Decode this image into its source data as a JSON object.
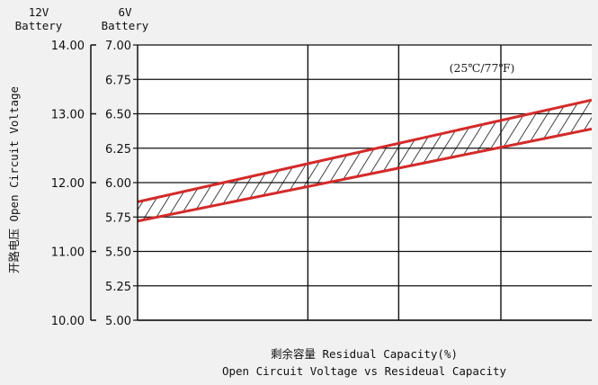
{
  "chart_data": {
    "type": "area",
    "header_12v": [
      "12V",
      "Battery"
    ],
    "header_6v": [
      "6V",
      "Battery"
    ],
    "ylabel": "开路电压 Open Circuit Voltage",
    "xlabel": "剩余容量  Residual Capacity(%)",
    "title": "Open Circuit Voltage vs Resideual Capacity",
    "annotation": "(25℃/77℉)",
    "y_ticks_12v": [
      "14.00",
      "13.00",
      "12.00",
      "11.00",
      "10.00"
    ],
    "y_ticks_6v": [
      "7.00",
      "6.75",
      "6.50",
      "6.25",
      "6.00",
      "5.75",
      "5.50",
      "5.25",
      "5.00"
    ],
    "ylim_6v": [
      5.0,
      7.0
    ],
    "ylim_12v": [
      10.0,
      14.0
    ],
    "xlim": [
      0,
      100
    ],
    "x_ticks": [],
    "grid": true,
    "series": [
      {
        "values_x": [
          0,
          100
        ],
        "values_y": [
          5.86,
          6.6
        ],
        "color": "#d42a2a"
      },
      {
        "values_x": [
          0,
          100
        ],
        "values_y": [
          5.72,
          6.39
        ],
        "color": "#d42a2a"
      }
    ],
    "hatch_band": true
  }
}
